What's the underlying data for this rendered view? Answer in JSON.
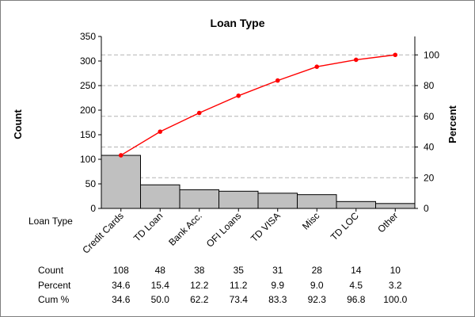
{
  "chart_data": {
    "type": "bar",
    "subtype": "pareto",
    "title": "Loan Type",
    "xlabel": "Loan Type",
    "ylabel": "Count",
    "ylabel_right": "Percent",
    "ylim": [
      0,
      350
    ],
    "ylim_right": [
      0,
      112
    ],
    "yticks": [
      0,
      50,
      100,
      150,
      200,
      250,
      300,
      350
    ],
    "yticks_right": [
      0,
      20,
      40,
      60,
      80,
      100
    ],
    "grid": "horizontal-dashed-at-right-ticks",
    "bar_color": "#c0c0c0",
    "line_color": "#ff0000",
    "categories": [
      "Credit Cards",
      "TD Loan",
      "Bank Acc.",
      "OFI Loans",
      "TD VISA",
      "Misc",
      "TD LOC",
      "Other"
    ],
    "series": [
      {
        "name": "Count",
        "values": [
          108,
          48,
          38,
          35,
          31,
          28,
          14,
          10
        ]
      },
      {
        "name": "Cum %",
        "values": [
          34.6,
          50.0,
          62.2,
          73.4,
          83.3,
          92.3,
          96.8,
          100.0
        ]
      }
    ],
    "table": {
      "rows": [
        {
          "label": "Count",
          "values": [
            "108",
            "48",
            "38",
            "35",
            "31",
            "28",
            "14",
            "10"
          ]
        },
        {
          "label": "Percent",
          "values": [
            "34.6",
            "15.4",
            "12.2",
            "11.2",
            "9.9",
            "9.0",
            "4.5",
            "3.2"
          ]
        },
        {
          "label": "Cum %",
          "values": [
            "34.6",
            "50.0",
            "62.2",
            "73.4",
            "83.3",
            "92.3",
            "96.8",
            "100.0"
          ]
        }
      ]
    }
  }
}
